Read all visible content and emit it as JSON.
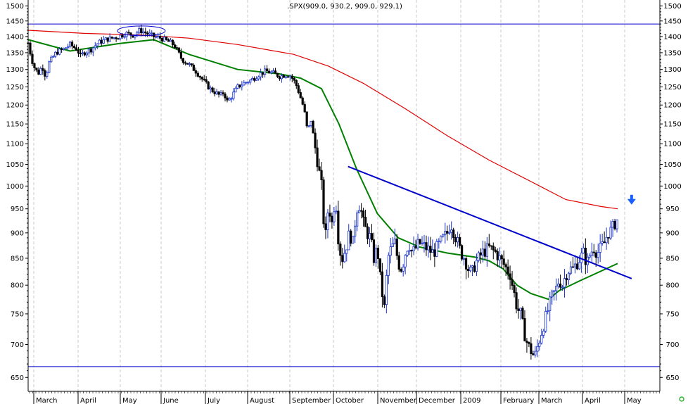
{
  "chart_data": {
    "type": "candlestick",
    "title": ".SPX(909.0, 930.2, 909.0, 929.1)",
    "y_axis": {
      "scale": "log",
      "ylim": [
        630,
        1520
      ],
      "ticks": [
        650,
        700,
        750,
        800,
        850,
        900,
        950,
        1000,
        1050,
        1100,
        1150,
        1200,
        1250,
        1300,
        1350,
        1400,
        1450,
        1500
      ],
      "labels_both_sides": true
    },
    "x_axis": {
      "month_labels": [
        "March",
        "April",
        "May",
        "June",
        "July",
        "August",
        "September",
        "October",
        "November",
        "December",
        "2009",
        "February",
        "March",
        "April",
        "May"
      ]
    },
    "grid": {
      "vertical_dashed": true
    },
    "price_path": [
      [
        0,
        1380
      ],
      [
        5,
        1330
      ],
      [
        10,
        1300
      ],
      [
        15,
        1290
      ],
      [
        20,
        1310
      ],
      [
        25,
        1280
      ],
      [
        30,
        1320
      ],
      [
        40,
        1350
      ],
      [
        50,
        1360
      ],
      [
        60,
        1375
      ],
      [
        70,
        1360
      ],
      [
        75,
        1340
      ],
      [
        80,
        1350
      ],
      [
        90,
        1360
      ],
      [
        100,
        1380
      ],
      [
        110,
        1390
      ],
      [
        120,
        1395
      ],
      [
        130,
        1400
      ],
      [
        140,
        1410
      ],
      [
        150,
        1405
      ],
      [
        160,
        1420
      ],
      [
        170,
        1410
      ],
      [
        180,
        1400
      ],
      [
        190,
        1395
      ],
      [
        200,
        1385
      ],
      [
        205,
        1380
      ],
      [
        210,
        1370
      ],
      [
        215,
        1350
      ],
      [
        220,
        1330
      ],
      [
        230,
        1315
      ],
      [
        240,
        1295
      ],
      [
        250,
        1270
      ],
      [
        260,
        1245
      ],
      [
        270,
        1232
      ],
      [
        275,
        1225
      ],
      [
        280,
        1235
      ],
      [
        285,
        1210
      ],
      [
        290,
        1220
      ],
      [
        300,
        1250
      ],
      [
        310,
        1262
      ],
      [
        320,
        1270
      ],
      [
        330,
        1285
      ],
      [
        340,
        1295
      ],
      [
        350,
        1290
      ],
      [
        360,
        1280
      ],
      [
        370,
        1285
      ],
      [
        375,
        1282
      ],
      [
        380,
        1270
      ],
      [
        385,
        1250
      ],
      [
        390,
        1220
      ],
      [
        395,
        1190
      ],
      [
        400,
        1130
      ],
      [
        405,
        1160
      ],
      [
        410,
        1100
      ],
      [
        415,
        1050
      ],
      [
        420,
        1000
      ],
      [
        425,
        880
      ],
      [
        430,
        960
      ],
      [
        435,
        920
      ],
      [
        440,
        980
      ],
      [
        445,
        870
      ],
      [
        450,
        850
      ],
      [
        455,
        870
      ],
      [
        460,
        900
      ],
      [
        465,
        880
      ],
      [
        470,
        950
      ],
      [
        475,
        960
      ],
      [
        480,
        920
      ],
      [
        485,
        900
      ],
      [
        490,
        890
      ],
      [
        495,
        850
      ],
      [
        500,
        870
      ],
      [
        505,
        800
      ],
      [
        510,
        760
      ],
      [
        515,
        850
      ],
      [
        520,
        870
      ],
      [
        525,
        880
      ],
      [
        530,
        840
      ],
      [
        535,
        830
      ],
      [
        540,
        860
      ],
      [
        545,
        880
      ],
      [
        550,
        860
      ],
      [
        555,
        870
      ],
      [
        560,
        880
      ],
      [
        570,
        870
      ],
      [
        580,
        860
      ],
      [
        590,
        880
      ],
      [
        600,
        900
      ],
      [
        605,
        920
      ],
      [
        610,
        900
      ],
      [
        615,
        880
      ],
      [
        620,
        860
      ],
      [
        625,
        850
      ],
      [
        630,
        830
      ],
      [
        635,
        820
      ],
      [
        640,
        840
      ],
      [
        650,
        860
      ],
      [
        660,
        870
      ],
      [
        670,
        860
      ],
      [
        680,
        840
      ],
      [
        690,
        820
      ],
      [
        695,
        790
      ],
      [
        700,
        760
      ],
      [
        705,
        750
      ],
      [
        710,
        720
      ],
      [
        715,
        700
      ],
      [
        720,
        690
      ],
      [
        725,
        680
      ],
      [
        730,
        700
      ],
      [
        735,
        720
      ],
      [
        740,
        740
      ],
      [
        745,
        760
      ],
      [
        750,
        780
      ],
      [
        755,
        790
      ],
      [
        760,
        810
      ],
      [
        765,
        800
      ],
      [
        770,
        820
      ],
      [
        775,
        830
      ],
      [
        780,
        830
      ],
      [
        785,
        840
      ],
      [
        790,
        850
      ],
      [
        795,
        860
      ],
      [
        800,
        840
      ],
      [
        805,
        860
      ],
      [
        810,
        870
      ],
      [
        815,
        860
      ],
      [
        820,
        870
      ],
      [
        825,
        880
      ],
      [
        830,
        900
      ],
      [
        835,
        905
      ],
      [
        840,
        920
      ],
      [
        844,
        929
      ]
    ],
    "series": [
      {
        "values": [
          [
            0,
            1390
          ],
          [
            60,
            1355
          ],
          [
            130,
            1378
          ],
          [
            180,
            1390
          ],
          [
            230,
            1345
          ],
          [
            300,
            1300
          ],
          [
            360,
            1287
          ],
          [
            390,
            1275
          ],
          [
            420,
            1245
          ],
          [
            445,
            1150
          ],
          [
            470,
            1040
          ],
          [
            500,
            940
          ],
          [
            530,
            890
          ],
          [
            560,
            872
          ],
          [
            600,
            860
          ],
          [
            640,
            852
          ],
          [
            660,
            845
          ],
          [
            680,
            830
          ],
          [
            700,
            800
          ],
          [
            720,
            785
          ],
          [
            745,
            775
          ],
          [
            760,
            790
          ],
          [
            790,
            808
          ],
          [
            844,
            840
          ]
        ],
        "color": "#008000",
        "kind": "moving-average"
      },
      {
        "values": [
          [
            0,
            1420
          ],
          [
            80,
            1410
          ],
          [
            160,
            1405
          ],
          [
            230,
            1395
          ],
          [
            300,
            1375
          ],
          [
            380,
            1345
          ],
          [
            430,
            1310
          ],
          [
            480,
            1260
          ],
          [
            540,
            1190
          ],
          [
            600,
            1120
          ],
          [
            660,
            1060
          ],
          [
            720,
            1010
          ],
          [
            770,
            970
          ],
          [
            820,
            955
          ],
          [
            844,
            950
          ]
        ],
        "color": "#e00000",
        "kind": "moving-average"
      }
    ],
    "annotations": [
      {
        "kind": "horizontal-line",
        "value": 1440,
        "color": "#0000cc"
      },
      {
        "kind": "horizontal-line",
        "value": 666,
        "color": "#0000cc"
      },
      {
        "kind": "trendline",
        "from": [
          458,
          1045
        ],
        "to": [
          864,
          812
        ],
        "color": "#0000cc"
      },
      {
        "kind": "ellipse",
        "center": [
          162,
          1418
        ],
        "color": "#0000cc"
      },
      {
        "kind": "arrow-down",
        "at": [
          864,
          962
        ],
        "color": "#1a5fff"
      }
    ]
  }
}
